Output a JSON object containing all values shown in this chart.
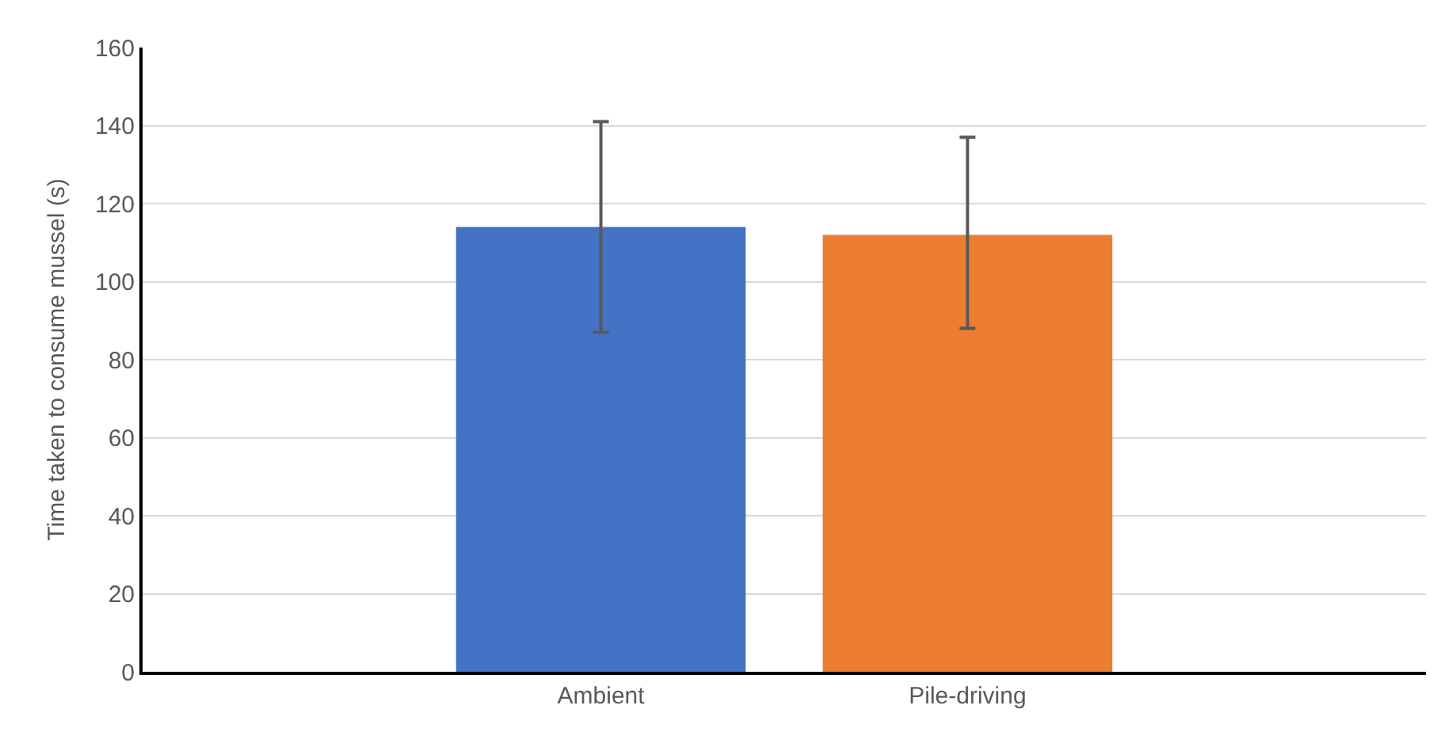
{
  "chart_data": {
    "type": "bar",
    "ylabel": "Time taken to consume mussel (s)",
    "categories": [
      "Ambient",
      "Pile-driving"
    ],
    "values": [
      114,
      112
    ],
    "colors": [
      "#4472c4",
      "#ed7d31"
    ],
    "errors": [
      [
        87,
        141
      ],
      [
        88,
        137
      ]
    ],
    "ylim": [
      0,
      160
    ],
    "yticks": [
      0,
      20,
      40,
      60,
      80,
      100,
      120,
      140,
      160
    ],
    "grid": "y"
  }
}
